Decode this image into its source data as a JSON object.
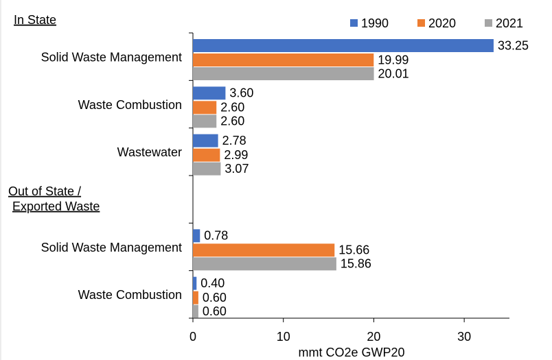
{
  "chart_data": {
    "type": "hbar",
    "annotations": [
      "In State",
      "Out of State /",
      "Exported Waste"
    ],
    "categories": [
      "Solid Waste Management",
      "Waste Combustion",
      "Wastewater",
      null,
      "Solid Waste Management",
      "Waste Combustion"
    ],
    "series": [
      {
        "name": "1990",
        "color": "#4472c4",
        "values": [
          33.25,
          3.6,
          2.78,
          null,
          0.78,
          0.4
        ],
        "value_labels": [
          "33.25",
          "3.60",
          "2.78",
          null,
          "0.78",
          "0.40"
        ]
      },
      {
        "name": "2020",
        "color": "#ed7d31",
        "values": [
          19.99,
          2.6,
          2.99,
          null,
          15.66,
          0.6
        ],
        "value_labels": [
          "19.99",
          "2.60",
          "2.99",
          null,
          "15.66",
          "0.60"
        ]
      },
      {
        "name": "2021",
        "color": "#a5a5a5",
        "values": [
          20.01,
          2.6,
          3.07,
          null,
          15.86,
          0.6
        ],
        "value_labels": [
          "20.01",
          "2.60",
          "3.07",
          null,
          "15.86",
          "0.60"
        ]
      }
    ],
    "xlabel": "mmt CO2e GWP20",
    "xlim": [
      0,
      35
    ],
    "xticks": [
      0,
      10,
      20,
      30
    ],
    "legend": "top-right"
  }
}
